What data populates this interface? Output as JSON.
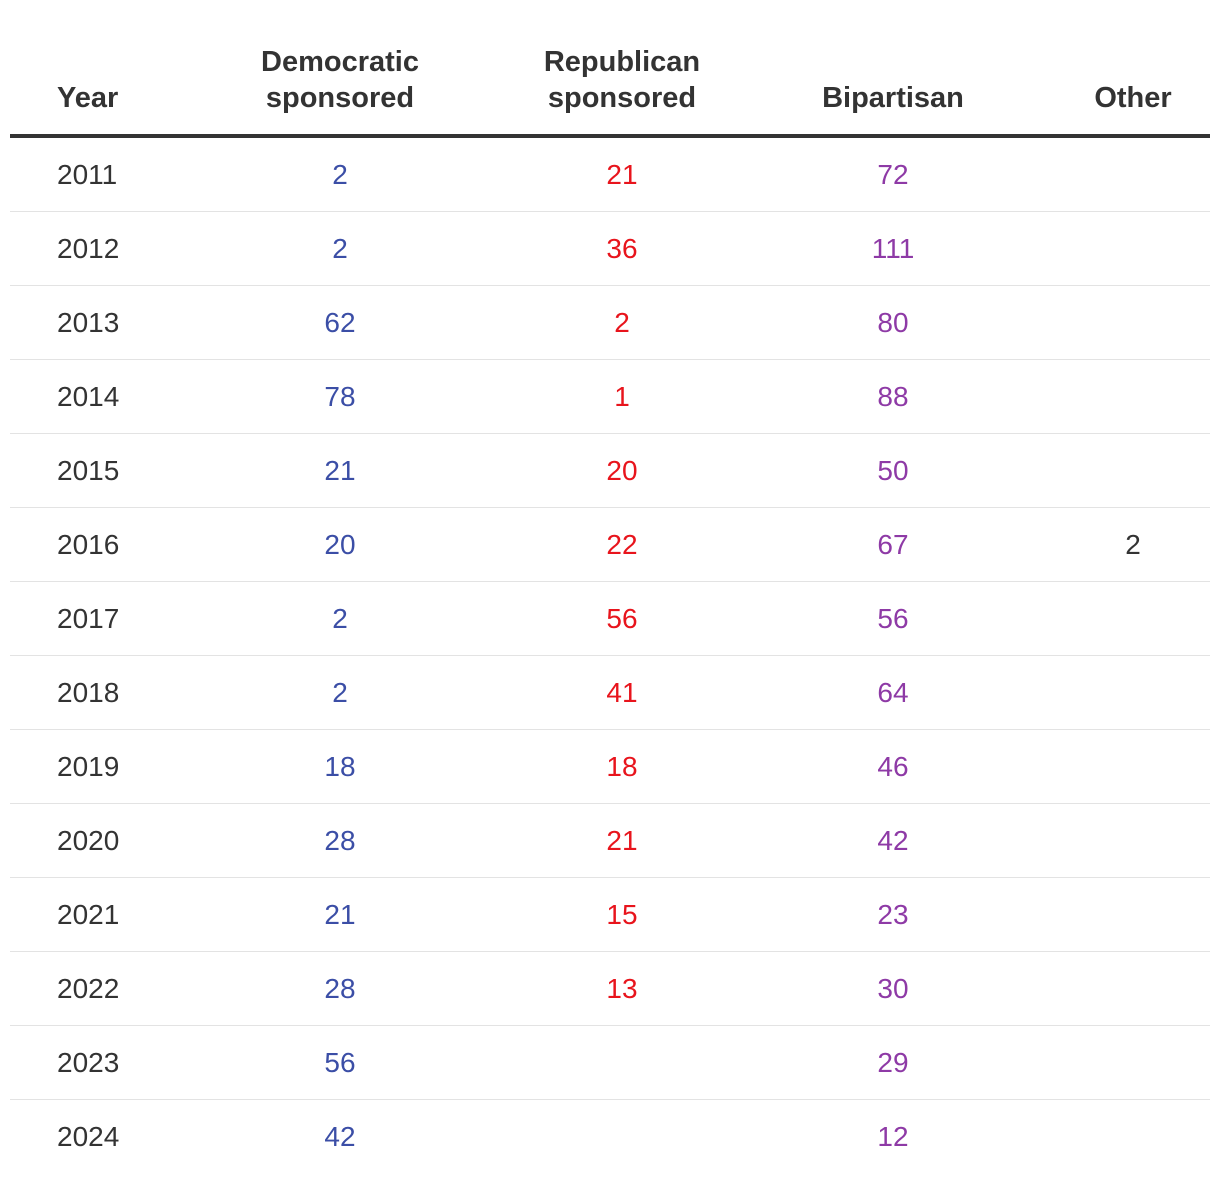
{
  "colors": {
    "democratic": "#3b4ea6",
    "republican": "#e8141c",
    "bipartisan": "#8e3aa6",
    "other": "#333333",
    "year": "#333333"
  },
  "chart_data": {
    "type": "table",
    "columns": [
      {
        "key": "year",
        "label": "Year"
      },
      {
        "key": "democratic",
        "label": "Democratic\nsponsored"
      },
      {
        "key": "republican",
        "label": "Republican\nsponsored"
      },
      {
        "key": "bipartisan",
        "label": "Bipartisan"
      },
      {
        "key": "other",
        "label": "Other"
      }
    ],
    "rows": [
      {
        "year": "2011",
        "democratic": "2",
        "republican": "21",
        "bipartisan": "72",
        "other": ""
      },
      {
        "year": "2012",
        "democratic": "2",
        "republican": "36",
        "bipartisan": "111",
        "other": ""
      },
      {
        "year": "2013",
        "democratic": "62",
        "republican": "2",
        "bipartisan": "80",
        "other": ""
      },
      {
        "year": "2014",
        "democratic": "78",
        "republican": "1",
        "bipartisan": "88",
        "other": ""
      },
      {
        "year": "2015",
        "democratic": "21",
        "republican": "20",
        "bipartisan": "50",
        "other": ""
      },
      {
        "year": "2016",
        "democratic": "20",
        "republican": "22",
        "bipartisan": "67",
        "other": "2"
      },
      {
        "year": "2017",
        "democratic": "2",
        "republican": "56",
        "bipartisan": "56",
        "other": ""
      },
      {
        "year": "2018",
        "democratic": "2",
        "republican": "41",
        "bipartisan": "64",
        "other": ""
      },
      {
        "year": "2019",
        "democratic": "18",
        "republican": "18",
        "bipartisan": "46",
        "other": ""
      },
      {
        "year": "2020",
        "democratic": "28",
        "republican": "21",
        "bipartisan": "42",
        "other": ""
      },
      {
        "year": "2021",
        "democratic": "21",
        "republican": "15",
        "bipartisan": "23",
        "other": ""
      },
      {
        "year": "2022",
        "democratic": "28",
        "republican": "13",
        "bipartisan": "30",
        "other": ""
      },
      {
        "year": "2023",
        "democratic": "56",
        "republican": "",
        "bipartisan": "29",
        "other": ""
      },
      {
        "year": "2024",
        "democratic": "42",
        "republican": "",
        "bipartisan": "12",
        "other": ""
      }
    ]
  }
}
